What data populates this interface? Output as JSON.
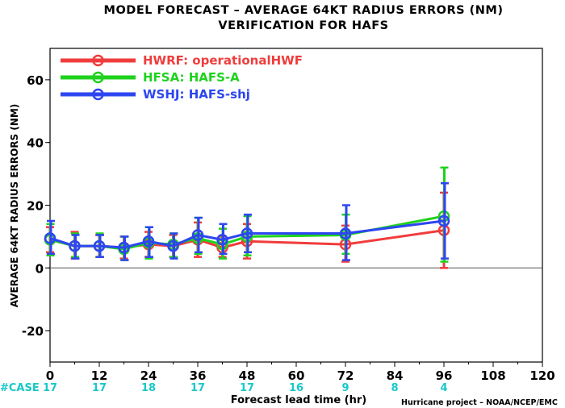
{
  "chart_data": {
    "type": "line",
    "title": "MODEL FORECAST – AVERAGE 64KT RADIUS ERRORS (NM)",
    "subtitle": "VERIFICATION FOR HAFS",
    "xlabel": "Forecast lead time (hr)",
    "ylabel": "AVERAGE 64KT RADIUS ERRORS (NM)",
    "xlim": [
      0,
      120
    ],
    "ylim": [
      -30,
      70
    ],
    "xticks": [
      0,
      12,
      24,
      36,
      48,
      60,
      72,
      84,
      96,
      108,
      120
    ],
    "yticks": [
      -20,
      0,
      20,
      40,
      60
    ],
    "grid": false,
    "legend_position": "top-left",
    "case_label": "#CASE",
    "case_x": [
      0,
      12,
      24,
      36,
      48,
      60,
      72,
      84,
      96
    ],
    "case_counts": [
      "17",
      "17",
      "18",
      "17",
      "17",
      "16",
      "9",
      "8",
      "4"
    ],
    "case_color": "#18c8c8",
    "credit": "Hurricane project – NOAA/NCEP/EMC",
    "series": [
      {
        "name": "HWRF: operationalHWF",
        "color": "#f03c3c",
        "x": [
          0,
          6,
          12,
          18,
          24,
          30,
          36,
          42,
          48,
          72,
          96
        ],
        "y": [
          9,
          7,
          7,
          6.5,
          7.5,
          7,
          9,
          6.5,
          8.5,
          7.5,
          12
        ],
        "err_low": [
          5,
          3,
          3.5,
          3,
          3.5,
          3.5,
          3.5,
          3.5,
          3,
          2,
          0
        ],
        "err_high": [
          13,
          11.5,
          10.5,
          10,
          11.5,
          10.5,
          14.5,
          10,
          14,
          13.5,
          24
        ]
      },
      {
        "name": "HFSA: HAFS-A",
        "color": "#1ed21e",
        "x": [
          0,
          6,
          12,
          18,
          24,
          30,
          36,
          42,
          48,
          72,
          96
        ],
        "y": [
          9,
          7,
          7,
          6,
          8,
          7.5,
          9.5,
          7.5,
          10,
          10.5,
          16.5
        ],
        "err_low": [
          4,
          3.5,
          3.5,
          2.5,
          3,
          3.5,
          4.5,
          3,
          4,
          4.5,
          2
        ],
        "err_high": [
          14,
          11,
          11,
          10,
          13,
          11,
          16,
          12.5,
          16.5,
          17,
          32
        ]
      },
      {
        "name": "WSHJ: HAFS-shj",
        "color": "#2d46f0",
        "x": [
          0,
          6,
          12,
          18,
          24,
          30,
          36,
          42,
          48,
          72,
          96
        ],
        "y": [
          9.5,
          7,
          7,
          6.5,
          8.5,
          7,
          10.5,
          9,
          11,
          11,
          15
        ],
        "err_low": [
          4.5,
          3,
          3.5,
          2.5,
          3.5,
          3,
          5,
          4.5,
          5,
          2.5,
          3
        ],
        "err_high": [
          15,
          10.5,
          10.5,
          10,
          13,
          11,
          16,
          14,
          17,
          20,
          27
        ]
      }
    ]
  }
}
